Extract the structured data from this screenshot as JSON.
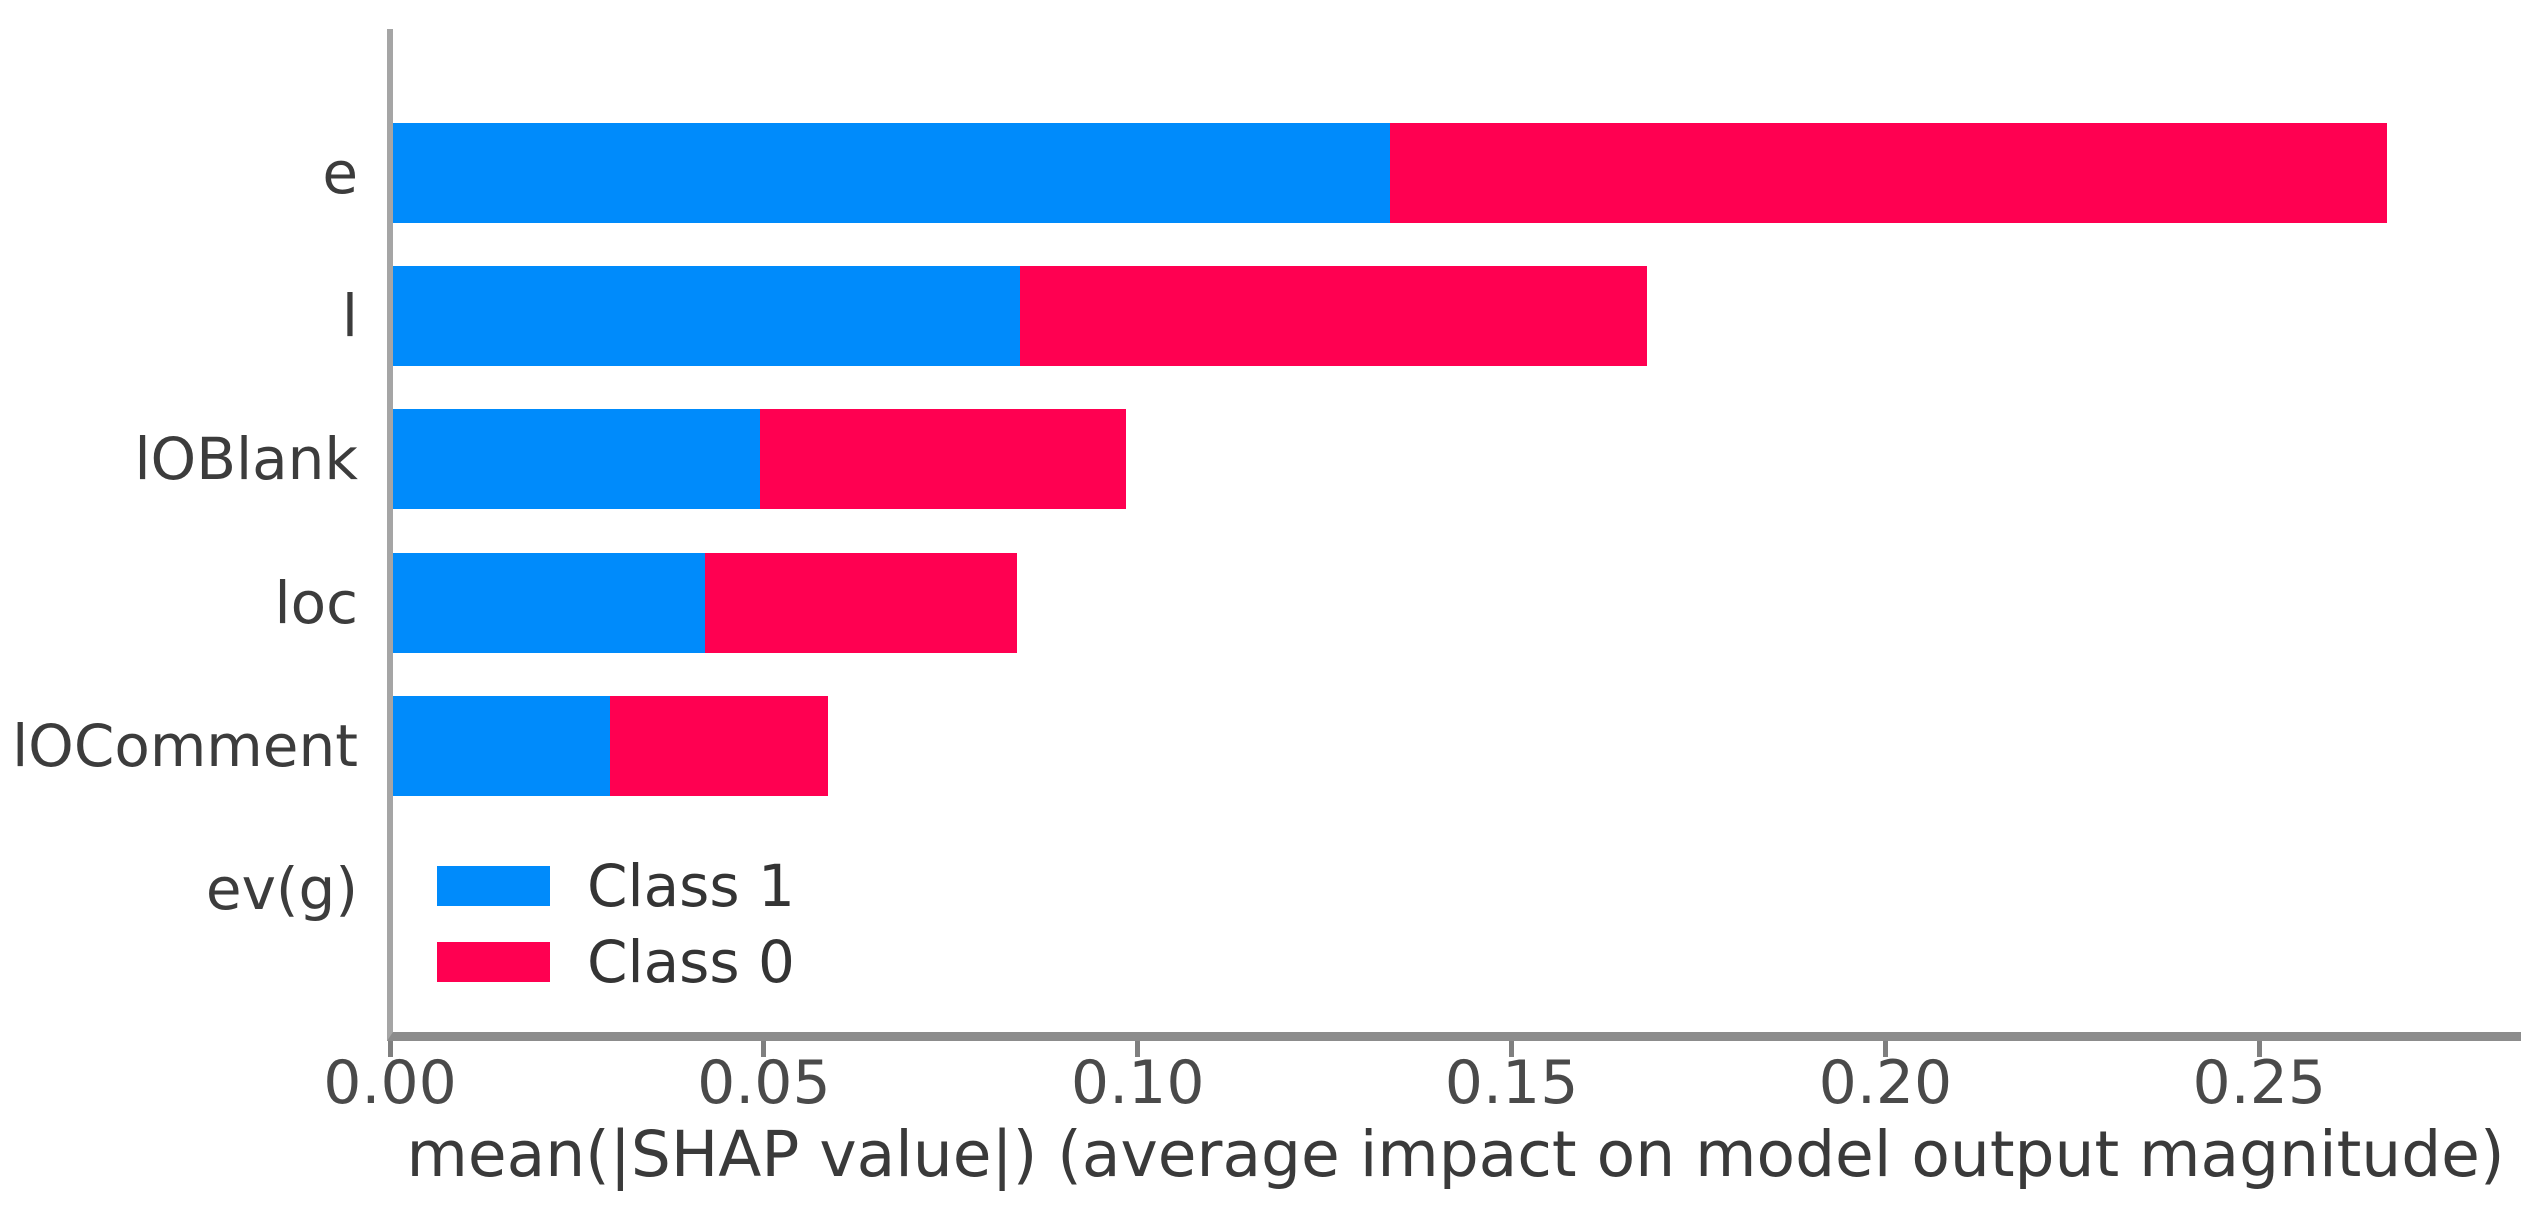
{
  "chart_data": {
    "type": "bar",
    "orientation": "horizontal",
    "stacked": true,
    "grid": false,
    "title": "",
    "xlabel": "mean(|SHAP value|) (average impact on model output magnitude)",
    "ylabel": "",
    "categories": [
      "e",
      "l",
      "lOBlank",
      "loc",
      "lOComment",
      "ev(g)"
    ],
    "series": [
      {
        "name": "Class 1",
        "color": "#008bfb",
        "values": [
          0.1335,
          0.084,
          0.0491,
          0.0418,
          0.0291,
          0.0
        ]
      },
      {
        "name": "Class 0",
        "color": "#ff0051",
        "values": [
          0.1335,
          0.084,
          0.0491,
          0.0418,
          0.0291,
          0.0
        ]
      }
    ],
    "totals": [
      0.267,
      0.168,
      0.098,
      0.084,
      0.058,
      0.0
    ],
    "xlim": [
      0,
      0.285
    ],
    "xticks": [
      {
        "value": 0.0,
        "label": "0.00"
      },
      {
        "value": 0.05,
        "label": "0.05"
      },
      {
        "value": 0.1,
        "label": "0.10"
      },
      {
        "value": 0.15,
        "label": "0.15"
      },
      {
        "value": 0.2,
        "label": "0.20"
      },
      {
        "value": 0.25,
        "label": "0.25"
      }
    ],
    "legend": {
      "position": "lower left inside",
      "entries": [
        {
          "label": "Class 1",
          "color": "#008bfb"
        },
        {
          "label": "Class 0",
          "color": "#ff0051"
        }
      ]
    },
    "colors": {
      "background": "#ffffff",
      "spine": "#8c8c8c",
      "tick": "#7f7f7f",
      "text": "#3a3a3a"
    }
  }
}
